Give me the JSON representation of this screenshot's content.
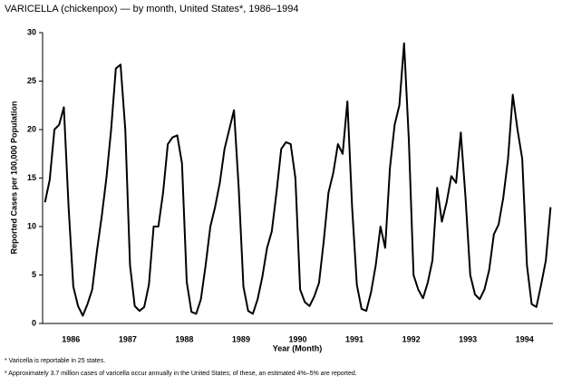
{
  "chart_data": {
    "type": "line",
    "title": "VARICELLA (chickenpox) — by month, United States*, 1986–1994",
    "x_label": "Year (Month)",
    "y_label": "Reported Cases per 100,000 Population",
    "footnotes": [
      "* Varicella is reportable in 25 states.",
      "* Approximately 3.7 million cases of varicella occur annually in the United States; of these, an estimated 4%–5% are reported."
    ],
    "categories": [
      null,
      null,
      null,
      null,
      null,
      "1986",
      null,
      null,
      null,
      null,
      null,
      null,
      null,
      null,
      null,
      null,
      null,
      "1987",
      null,
      null,
      null,
      null,
      null,
      null,
      null,
      null,
      null,
      null,
      null,
      "1988",
      null,
      null,
      null,
      null,
      null,
      null,
      null,
      null,
      null,
      null,
      null,
      "1989",
      null,
      null,
      null,
      null,
      null,
      null,
      null,
      null,
      null,
      null,
      null,
      "1990",
      null,
      null,
      null,
      null,
      null,
      null,
      null,
      null,
      null,
      null,
      null,
      "1991",
      null,
      null,
      null,
      null,
      null,
      null,
      null,
      null,
      null,
      null,
      null,
      "1992",
      null,
      null,
      null,
      null,
      null,
      null,
      null,
      null,
      null,
      null,
      null,
      "1993",
      null,
      null,
      null,
      null,
      null,
      null,
      null,
      null,
      null,
      null,
      null,
      "1994",
      null,
      null,
      null,
      null,
      null,
      null
    ],
    "values": [
      12.5,
      14.8,
      20,
      20.5,
      22.3,
      12,
      3.8,
      1.8,
      0.8,
      2,
      3.5,
      7.5,
      11,
      15,
      20,
      26.3,
      26.7,
      20,
      6,
      1.8,
      1.3,
      1.7,
      4,
      10,
      10,
      13.5,
      18.5,
      19.2,
      19.4,
      16.5,
      4.3,
      1.2,
      1,
      2.5,
      6,
      10,
      12,
      14.5,
      18,
      20,
      22,
      14,
      3.8,
      1.3,
      1,
      2.5,
      4.8,
      7.8,
      9.5,
      13.5,
      18,
      18.7,
      18.5,
      15,
      3.5,
      2.2,
      1.8,
      2.8,
      4.2,
      8.5,
      13.5,
      15.5,
      18.5,
      17.5,
      22.9,
      12,
      4,
      1.5,
      1.3,
      3.2,
      6,
      10,
      7.8,
      16,
      20.5,
      22.5,
      28.9,
      19,
      5,
      3.5,
      2.6,
      4.2,
      6.5,
      14,
      10.5,
      12.5,
      15.2,
      14.5,
      19.7,
      13,
      5,
      3,
      2.5,
      3.5,
      5.5,
      9.2,
      10.2,
      13,
      17,
      23.6,
      20,
      17,
      6,
      2,
      1.7,
      4,
      6.5,
      12
    ],
    "color": "#000000",
    "ylim": [
      0,
      30
    ],
    "yticks": [
      0,
      5,
      10,
      15,
      20,
      25,
      30
    ],
    "grid": false
  }
}
